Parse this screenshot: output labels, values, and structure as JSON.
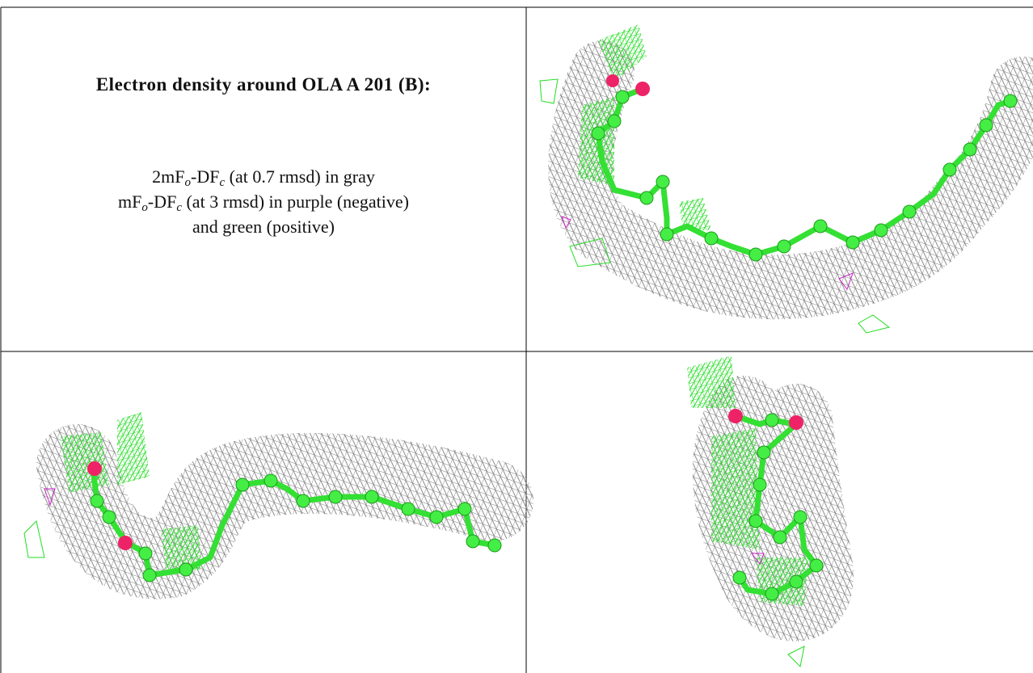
{
  "figure": {
    "title": "Electron density around OLA A 201 (B):",
    "legend_lines": [
      [
        "2mF",
        "o",
        "-DF",
        "c",
        " (at 0.7 rmsd) in gray"
      ],
      [
        "mF",
        "o",
        "-DF",
        "c",
        " (at 3 rmsd) in purple (negative)"
      ],
      [
        "and green (positive)"
      ]
    ]
  }
}
